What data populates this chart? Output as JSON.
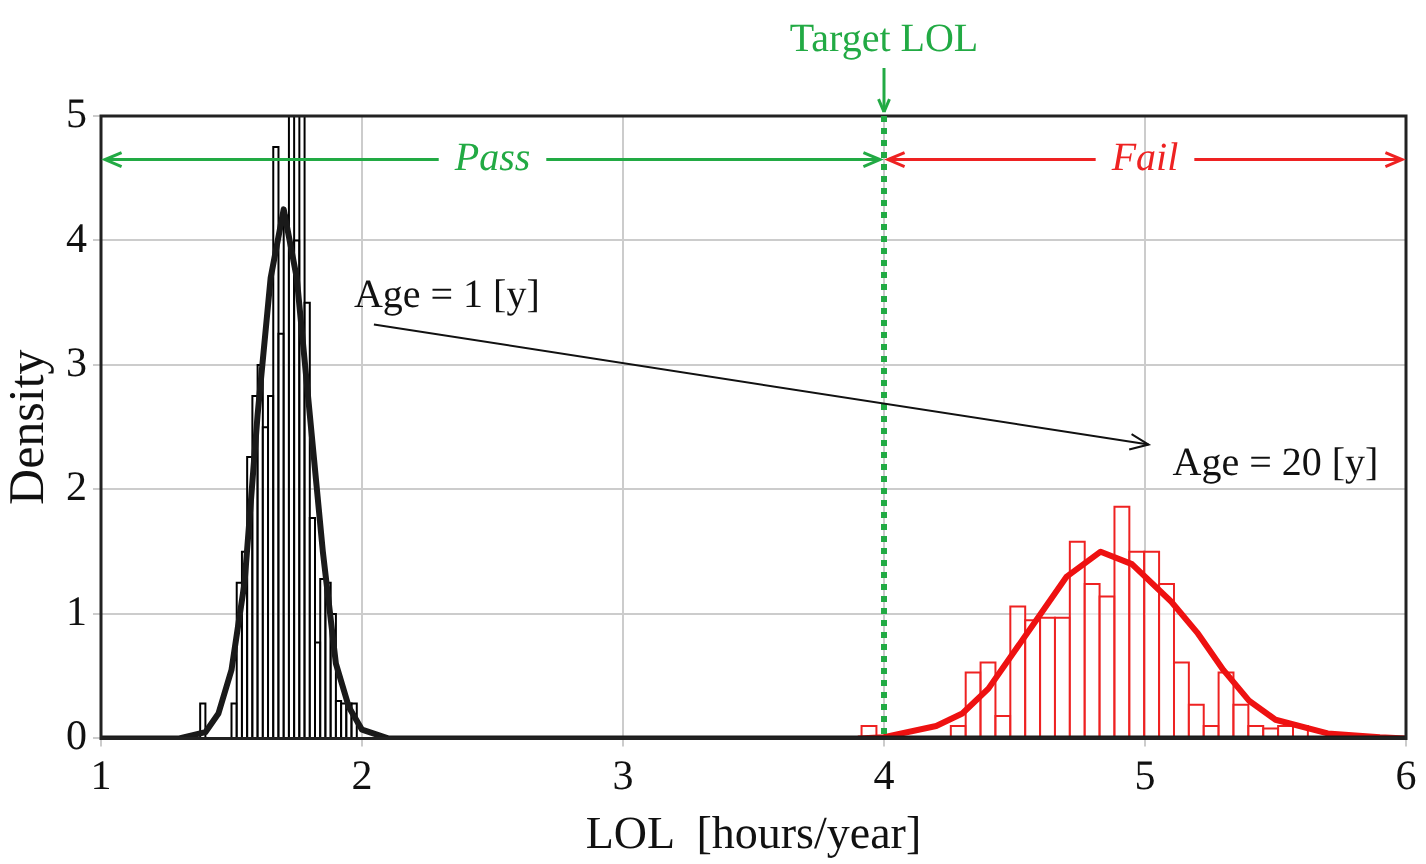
{
  "chart_data": {
    "type": "histogram",
    "xlabel": "LOL  [hours/year]",
    "ylabel": "Density",
    "xlim": [
      1,
      6
    ],
    "xticks": [
      1,
      2,
      3,
      4,
      5,
      6
    ],
    "ylim": [
      0,
      5
    ],
    "yticks": [
      0,
      1,
      2,
      3,
      4,
      5
    ],
    "grid": true,
    "series": [
      {
        "color": "#000000",
        "bins": [
          1.38,
          1.4,
          1.42,
          1.44,
          1.46,
          1.48,
          1.5,
          1.52,
          1.54,
          1.56,
          1.58,
          1.6,
          1.62,
          1.64,
          1.66,
          1.68,
          1.7,
          1.72,
          1.74,
          1.76,
          1.78,
          1.8,
          1.82,
          1.84,
          1.86,
          1.88,
          1.9,
          1.92,
          1.94,
          1.96,
          1.98
        ],
        "values": [
          0.28,
          0,
          0,
          0,
          0,
          0,
          0.28,
          1.25,
          1.5,
          2.26,
          2.75,
          3.0,
          2.5,
          2.75,
          4.75,
          3.25,
          4.2,
          5,
          4.0,
          5,
          3.5,
          1.77,
          0.77,
          1.28,
          1.25,
          1.0,
          0.3,
          0.28,
          0.28,
          0.28
        ]
      },
      {
        "color": "#ee2222",
        "bins": [
          3.914,
          3.971,
          4.028,
          4.085,
          4.142,
          4.199,
          4.256,
          4.313,
          4.37,
          4.427,
          4.484,
          4.541,
          4.598,
          4.655,
          4.712,
          4.769,
          4.826,
          4.883,
          4.94,
          4.997,
          5.054,
          5.111,
          5.168,
          5.225,
          5.282,
          5.339,
          5.396,
          5.453,
          5.51,
          5.567,
          5.624
        ],
        "values": [
          0.1,
          0,
          0,
          0,
          0,
          0,
          0.1,
          0.53,
          0.61,
          0.18,
          1.06,
          0.95,
          0.97,
          0.97,
          1.58,
          1.24,
          1.14,
          1.86,
          1.5,
          1.5,
          1.24,
          0.61,
          0.27,
          0.1,
          0.53,
          0.27,
          0.1,
          0.08,
          0.1,
          0.1
        ]
      },
      {
        "type": "line",
        "color": "#1a1a1a",
        "x": [
          1,
          1.3,
          1.4,
          1.45,
          1.5,
          1.55,
          1.6,
          1.65,
          1.7,
          1.75,
          1.8,
          1.85,
          1.9,
          1.95,
          2,
          2.1,
          6
        ],
        "values": [
          0,
          0,
          0.05,
          0.2,
          0.55,
          1.25,
          2.6,
          3.7,
          4.25,
          3.7,
          2.6,
          1.5,
          0.6,
          0.25,
          0.07,
          0,
          0
        ]
      },
      {
        "type": "line",
        "color": "#ee1111",
        "x": [
          3.9,
          4,
          4.2,
          4.3,
          4.4,
          4.5,
          4.6,
          4.7,
          4.83,
          4.95,
          5.1,
          5.2,
          5.3,
          5.4,
          5.5,
          5.7,
          5.9,
          6
        ],
        "values": [
          0,
          0.01,
          0.1,
          0.2,
          0.4,
          0.7,
          1,
          1.3,
          1.5,
          1.4,
          1.1,
          0.85,
          0.55,
          0.3,
          0.15,
          0.04,
          0.01,
          0
        ]
      }
    ],
    "ref_lines": [
      {
        "axis": "x",
        "value": 4,
        "label": "Target LOL",
        "color": "#22aa44",
        "line_style": "dotted"
      }
    ],
    "annotations": [
      {
        "text": "Pass",
        "x": 4,
        "y": 4.65
      },
      {
        "text": "Fail",
        "x": 4,
        "y": 4.65
      },
      "Age = 1 [y]",
      "Age = 20 [y]"
    ]
  }
}
